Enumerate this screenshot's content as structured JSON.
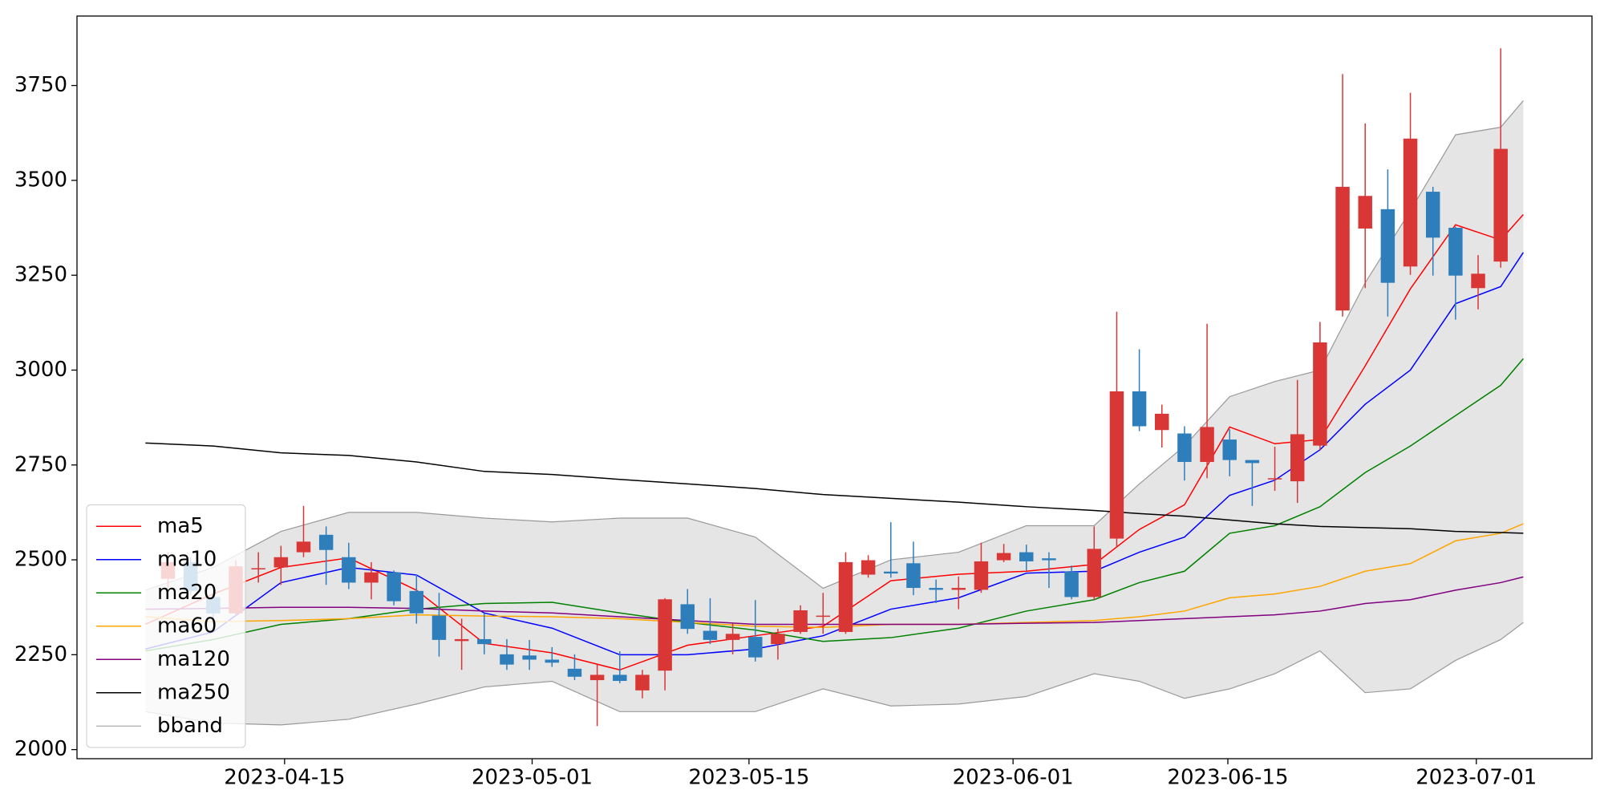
{
  "chart_data": {
    "type": "candlestick",
    "up_color": "#d93636",
    "down_color": "#2e7ebb",
    "candles": {
      "x": [
        1,
        2,
        3,
        4,
        5,
        6,
        7,
        8,
        9,
        10,
        11,
        12,
        13,
        14,
        15,
        16,
        17,
        18,
        19,
        20,
        21,
        22,
        23,
        24,
        25,
        26,
        27,
        28,
        29,
        30,
        31,
        32,
        33,
        34,
        35,
        36,
        37,
        38,
        39,
        40,
        41,
        42,
        43,
        44,
        45,
        46,
        47,
        48,
        49,
        50,
        51,
        52,
        53,
        54,
        55,
        56,
        57,
        58,
        59,
        60
      ],
      "open": [
        2450,
        2494,
        2402,
        2359,
        2475,
        2480,
        2520,
        2566,
        2507,
        2440,
        2467,
        2418,
        2353,
        2286,
        2291,
        2251,
        2248,
        2237,
        2213,
        2183,
        2197,
        2156,
        2208,
        2383,
        2313,
        2289,
        2297,
        2278,
        2310,
        2350,
        2310,
        2461,
        2469,
        2491,
        2426,
        2421,
        2421,
        2499,
        2520,
        2504,
        2469,
        2402,
        2556,
        2944,
        2842,
        2833,
        2758,
        2817,
        2763,
        2715,
        2707,
        2801,
        3157,
        3373,
        3424,
        3273,
        3470,
        3375,
        3216,
        3286
      ],
      "high": [
        2520,
        2507,
        2418,
        2499,
        2520,
        2537,
        2642,
        2588,
        2545,
        2494,
        2472,
        2461,
        2413,
        2345,
        2359,
        2291,
        2289,
        2270,
        2251,
        2224,
        2259,
        2210,
        2399,
        2423,
        2399,
        2332,
        2394,
        2318,
        2380,
        2413,
        2520,
        2512,
        2599,
        2548,
        2448,
        2456,
        2545,
        2542,
        2540,
        2520,
        2485,
        2588,
        3154,
        3055,
        2909,
        2852,
        3122,
        2844,
        2763,
        2798,
        2974,
        3127,
        3780,
        3650,
        3529,
        3731,
        3483,
        3378,
        3303,
        3848
      ],
      "low": [
        2426,
        2407,
        2332,
        2353,
        2440,
        2434,
        2507,
        2434,
        2423,
        2396,
        2380,
        2332,
        2245,
        2210,
        2251,
        2210,
        2210,
        2218,
        2183,
        2062,
        2175,
        2135,
        2156,
        2305,
        2278,
        2251,
        2232,
        2237,
        2305,
        2305,
        2305,
        2453,
        2453,
        2407,
        2386,
        2370,
        2413,
        2494,
        2472,
        2426,
        2396,
        2394,
        2534,
        2839,
        2796,
        2709,
        2715,
        2720,
        2642,
        2682,
        2650,
        2790,
        3141,
        3216,
        3141,
        3251,
        3249,
        3133,
        3160,
        3270
      ],
      "close": [
        2494,
        2418,
        2359,
        2483,
        2478,
        2507,
        2548,
        2526,
        2440,
        2467,
        2391,
        2359,
        2289,
        2291,
        2278,
        2224,
        2237,
        2229,
        2192,
        2197,
        2181,
        2197,
        2396,
        2318,
        2289,
        2305,
        2243,
        2305,
        2367,
        2353,
        2494,
        2499,
        2464,
        2426,
        2421,
        2426,
        2496,
        2518,
        2496,
        2499,
        2402,
        2529,
        2944,
        2852,
        2885,
        2758,
        2850,
        2763,
        2755,
        2715,
        2831,
        3073,
        3483,
        3459,
        3230,
        3610,
        3349,
        3249,
        3254,
        3583
      ]
    },
    "line_x": [
      0,
      3,
      6,
      9,
      12,
      15,
      18,
      21,
      24,
      27,
      30,
      33,
      36,
      39,
      42,
      44,
      46,
      48,
      50,
      52,
      54,
      56,
      58,
      60,
      61
    ],
    "series": [
      {
        "name": "ma5",
        "color": "#ff0000",
        "values": [
          2330,
          2410,
          2480,
          2505,
          2420,
          2280,
          2255,
          2210,
          2275,
          2300,
          2325,
          2445,
          2462,
          2470,
          2488,
          2580,
          2645,
          2850,
          2806,
          2817,
          3011,
          3214,
          3383,
          3343,
          3410
        ]
      },
      {
        "name": "ma10",
        "color": "#0000ff",
        "values": [
          2265,
          2310,
          2440,
          2480,
          2460,
          2360,
          2320,
          2250,
          2250,
          2265,
          2300,
          2370,
          2400,
          2465,
          2470,
          2520,
          2560,
          2670,
          2710,
          2790,
          2910,
          3000,
          3175,
          3220,
          3310
        ]
      },
      {
        "name": "ma20",
        "color": "#008000",
        "values": [
          2260,
          2290,
          2330,
          2345,
          2370,
          2385,
          2388,
          2360,
          2335,
          2315,
          2285,
          2295,
          2320,
          2365,
          2395,
          2440,
          2470,
          2570,
          2590,
          2640,
          2730,
          2800,
          2880,
          2960,
          3030
        ]
      },
      {
        "name": "ma60",
        "color": "#ffa500",
        "values": [
          2350,
          2337,
          2340,
          2345,
          2355,
          2352,
          2350,
          2345,
          2335,
          2325,
          2322,
          2330,
          2330,
          2335,
          2340,
          2350,
          2365,
          2400,
          2410,
          2430,
          2470,
          2490,
          2550,
          2570,
          2595
        ]
      },
      {
        "name": "ma120",
        "color": "#800080",
        "values": [
          2370,
          2372,
          2375,
          2375,
          2372,
          2365,
          2360,
          2350,
          2340,
          2330,
          2330,
          2330,
          2330,
          2333,
          2335,
          2340,
          2345,
          2350,
          2355,
          2365,
          2385,
          2395,
          2420,
          2440,
          2455
        ]
      },
      {
        "name": "ma250",
        "color": "#000000",
        "values": [
          2808,
          2800,
          2782,
          2775,
          2758,
          2733,
          2725,
          2712,
          2700,
          2688,
          2672,
          2662,
          2652,
          2640,
          2630,
          2622,
          2615,
          2605,
          2595,
          2588,
          2585,
          2582,
          2575,
          2572,
          2570
        ]
      }
    ],
    "band": {
      "name": "bband",
      "color": "#999999",
      "fill": "#e5e5e5",
      "upper": [
        2420,
        2480,
        2575,
        2625,
        2625,
        2610,
        2600,
        2610,
        2610,
        2560,
        2425,
        2500,
        2520,
        2590,
        2590,
        2700,
        2800,
        2930,
        2970,
        3000,
        3230,
        3420,
        3620,
        3640,
        3710
      ],
      "lower": [
        2100,
        2070,
        2065,
        2080,
        2120,
        2165,
        2180,
        2100,
        2100,
        2100,
        2160,
        2115,
        2120,
        2140,
        2200,
        2180,
        2135,
        2160,
        2200,
        2260,
        2150,
        2160,
        2235,
        2290,
        2335
      ]
    },
    "xlim": [
      -3.03,
      64.04
    ],
    "xticks": [
      {
        "value": 6.16,
        "label": "2023-04-15"
      },
      {
        "value": 17.12,
        "label": "2023-05-01"
      },
      {
        "value": 26.72,
        "label": "2023-05-15"
      },
      {
        "value": 38.41,
        "label": "2023-06-01"
      },
      {
        "value": 47.92,
        "label": "2023-06-15"
      },
      {
        "value": 58.92,
        "label": "2023-07-01"
      }
    ],
    "ylim": [
      1976,
      3933
    ],
    "yticks": [
      2000,
      2250,
      2500,
      2750,
      3000,
      3250,
      3500,
      3750
    ],
    "legend": "lower left"
  }
}
